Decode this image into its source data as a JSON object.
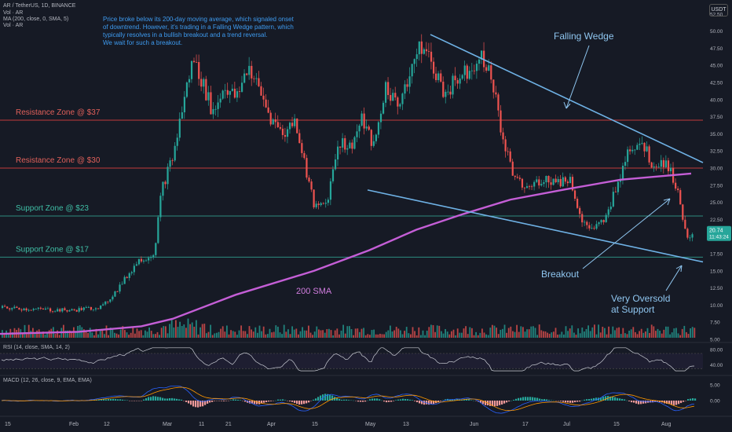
{
  "header": {
    "symbol_line": "AR / TetherUS, 1D, BINANCE",
    "lines": [
      "Vol · AR",
      "MA (200, close, 0, SMA, 5)",
      "Vol · AR"
    ]
  },
  "currency_badge": "USDT",
  "note": "Price broke below its 200-day moving average, which signaled onset\nof downtrend. However, it's trading in a Falling Wedge pattern, which\ntypically resolves in a bullish breakout and a trend reversal.\nWe wait for such a breakout.",
  "colors": {
    "background": "#161a25",
    "up": "#26a69a",
    "down": "#ef5350",
    "sma": "#c45ed6",
    "wedge": "#6fb2e6",
    "resistance": "#c23a3a",
    "support": "#2e8c80",
    "annotation": "#8fc6f0"
  },
  "chart_data": [
    {
      "type": "candlestick",
      "title": "AR / TetherUS, 1D, BINANCE",
      "x_ticks": [
        "15",
        "Feb",
        "12",
        "Mar",
        "11",
        "21",
        "Apr",
        "15",
        "May",
        "13",
        "Jun",
        "17",
        "Jul",
        "15",
        "Aug"
      ],
      "y_ticks": [
        5,
        7.5,
        10,
        12.5,
        15,
        17.5,
        20,
        22.5,
        25,
        27.5,
        30,
        32.5,
        35,
        37.5,
        40,
        42.5,
        45,
        47.5,
        50,
        52.5
      ],
      "ylim": [
        4.3,
        54.5
      ],
      "last_price": "20.74",
      "countdown": "11:43:24",
      "price_path": [
        [
          0,
          9.6
        ],
        [
          40,
          9.4
        ],
        [
          90,
          9.2
        ],
        [
          130,
          9.8
        ],
        [
          150,
          12.5
        ],
        [
          175,
          16.5
        ],
        [
          195,
          17.5
        ],
        [
          205,
          27
        ],
        [
          220,
          32
        ],
        [
          235,
          41
        ],
        [
          245,
          46
        ],
        [
          255,
          43
        ],
        [
          270,
          38
        ],
        [
          285,
          42
        ],
        [
          300,
          40
        ],
        [
          315,
          45
        ],
        [
          330,
          41
        ],
        [
          345,
          37
        ],
        [
          360,
          35
        ],
        [
          375,
          37
        ],
        [
          390,
          29
        ],
        [
          400,
          24
        ],
        [
          415,
          25
        ],
        [
          430,
          34
        ],
        [
          445,
          33
        ],
        [
          460,
          37
        ],
        [
          475,
          33
        ],
        [
          490,
          42
        ],
        [
          505,
          39
        ],
        [
          520,
          44
        ],
        [
          535,
          48
        ],
        [
          550,
          45
        ],
        [
          565,
          41
        ],
        [
          580,
          43
        ],
        [
          600,
          45
        ],
        [
          615,
          46
        ],
        [
          625,
          43
        ],
        [
          640,
          34
        ],
        [
          655,
          28
        ],
        [
          670,
          27
        ],
        [
          690,
          28.5
        ],
        [
          710,
          28
        ],
        [
          725,
          28.5
        ],
        [
          740,
          22
        ],
        [
          755,
          21
        ],
        [
          770,
          22.5
        ],
        [
          785,
          28
        ],
        [
          800,
          33
        ],
        [
          815,
          34
        ],
        [
          830,
          30.5
        ],
        [
          845,
          31
        ],
        [
          855,
          29
        ],
        [
          865,
          25
        ],
        [
          875,
          19
        ],
        [
          883,
          20.7
        ]
      ],
      "series": [
        {
          "name": "200 SMA",
          "values": [
            [
              0,
              5.8
            ],
            [
              100,
              6.1
            ],
            [
              180,
              6.9
            ],
            [
              220,
              8
            ],
            [
              300,
              11.5
            ],
            [
              400,
              15
            ],
            [
              470,
              18
            ],
            [
              530,
              21
            ],
            [
              590,
              23.3
            ],
            [
              650,
              25.4
            ],
            [
              720,
              26.9
            ],
            [
              790,
              28.3
            ],
            [
              880,
              29.2
            ]
          ]
        }
      ],
      "horizontal_levels": [
        {
          "value": 37,
          "label": "Resistance Zone @ $37",
          "kind": "resistance"
        },
        {
          "value": 30,
          "label": "Resistance Zone @ $30",
          "kind": "resistance"
        },
        {
          "value": 23,
          "label": "Support Zone @ $23",
          "kind": "support"
        },
        {
          "value": 17,
          "label": "Support Zone @ $17",
          "kind": "support"
        }
      ],
      "trendlines": [
        {
          "name": "upper",
          "from": [
            "May",
            49.5
          ],
          "to": [
            "Aug",
            30.8
          ]
        },
        {
          "name": "lower",
          "from": [
            "May",
            26.8
          ],
          "to": [
            "Aug",
            16.3
          ]
        }
      ],
      "annotations": [
        {
          "text": "Falling Wedge"
        },
        {
          "text": "200 SMA"
        },
        {
          "text": "Breakout"
        },
        {
          "text": "Very Oversold\nat Support"
        }
      ]
    },
    {
      "type": "line",
      "title": "RSI (14, close, SMA, 14, 2)",
      "y_ticks": [
        80,
        40
      ],
      "ylim": [
        20,
        95
      ]
    },
    {
      "type": "bar",
      "title": "MACD (12, 26, close, 9, EMA, EMA)",
      "y_ticks": [
        5,
        0
      ],
      "ylim": [
        -3.5,
        7.5
      ]
    }
  ]
}
